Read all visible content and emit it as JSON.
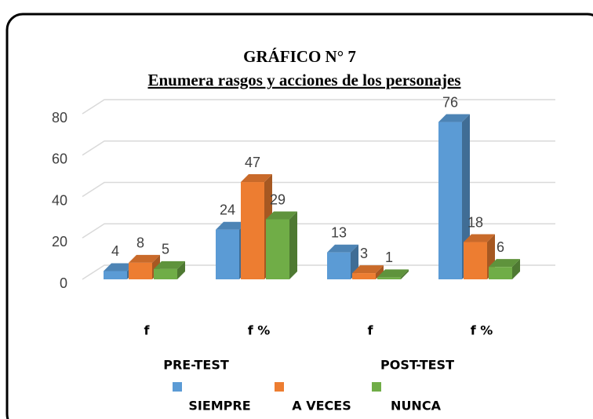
{
  "chart_data": {
    "type": "bar3d",
    "title": "GRÁFICO N° 7",
    "subtitle": "Enumera rasgos y acciones de los personajes",
    "categories": [
      "f",
      "f %",
      "f",
      "f %"
    ],
    "group_labels": [
      "PRE-TEST",
      "POST-TEST"
    ],
    "series": [
      {
        "name": "SIEMPRE",
        "color": "#5b9bd5",
        "values": [
          4,
          24,
          13,
          76
        ]
      },
      {
        "name": "A VECES",
        "color": "#ed7d31",
        "values": [
          8,
          47,
          3,
          18
        ]
      },
      {
        "name": "NUNCA",
        "color": "#70ad47",
        "values": [
          5,
          29,
          1,
          6
        ]
      }
    ],
    "ylim": [
      0,
      80
    ],
    "yticks": [
      0,
      20,
      40,
      60,
      80
    ],
    "grid": true
  }
}
